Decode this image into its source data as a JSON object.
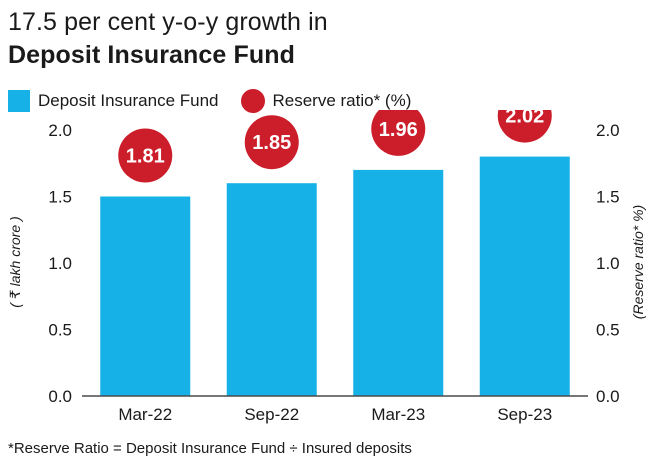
{
  "title_line1": "17.5 per cent y-o-y growth in",
  "title_line2": "Deposit Insurance Fund",
  "legend": {
    "bar_label": "Deposit Insurance Fund",
    "dot_label": "Reserve ratio* (%)"
  },
  "footnote": "*Reserve Ratio = Deposit Insurance Fund ÷ Insured deposits",
  "colors": {
    "bar": "#16b1e6",
    "dot": "#cc1d2a",
    "dot_text": "#ffffff"
  },
  "chart_data": {
    "type": "bar",
    "categories": [
      "Mar-22",
      "Sep-22",
      "Mar-23",
      "Sep-23"
    ],
    "series": [
      {
        "name": "Deposit Insurance Fund",
        "values": [
          1.5,
          1.6,
          1.7,
          1.8
        ]
      },
      {
        "name": "Reserve ratio* (%)",
        "values": [
          1.81,
          1.85,
          1.96,
          2.02
        ]
      }
    ],
    "ylabel_left": "( ₹ lakh crore )",
    "ylabel_right": "(Reserve ratio* %)",
    "ylim": [
      0,
      2.0
    ],
    "yticks": [
      "0.0",
      "0.5",
      "1.0",
      "1.5",
      "2.0"
    ],
    "grid": false
  }
}
